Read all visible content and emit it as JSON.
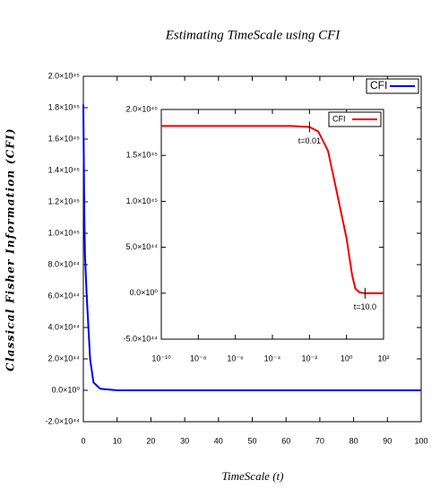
{
  "chart_data": [
    {
      "type": "line",
      "title": "Estimating TimeScale using CFI",
      "x_label": "TimeScale (t)",
      "y_label": "Classical Fisher Information (CFI)",
      "x": [
        0,
        0.1,
        0.3,
        0.5,
        1,
        2,
        3,
        5,
        10,
        20,
        30,
        40,
        50,
        60,
        70,
        80,
        90,
        100
      ],
      "series": [
        {
          "name": "CFI",
          "color": "#0000ee",
          "values": [
            1.82e+45,
            1.55e+45,
            1.1e+45,
            8.5e+44,
            6e+44,
            2e+44,
            5e+43,
            1e+43,
            0,
            0,
            0,
            0,
            0,
            0,
            0,
            0,
            0,
            0
          ]
        }
      ],
      "xlim": [
        0,
        100
      ],
      "xticks": [
        0,
        10,
        20,
        30,
        40,
        50,
        60,
        70,
        80,
        90,
        100
      ],
      "ylim": [
        -2e+44,
        2e+45
      ],
      "yticks": [
        {
          "value": -2e+44,
          "label": "-2.0×10⁴⁴"
        },
        {
          "value": 0,
          "label": "0.0×10⁰"
        },
        {
          "value": 2e+44,
          "label": "2.0×10⁴⁴"
        },
        {
          "value": 4e+44,
          "label": "4.0×10⁴⁴"
        },
        {
          "value": 6e+44,
          "label": "6.0×10⁴⁴"
        },
        {
          "value": 8e+44,
          "label": "8.0×10⁴⁴"
        },
        {
          "value": 1e+45,
          "label": "1.0×10⁴⁵"
        },
        {
          "value": 1.2e+45,
          "label": "1.2×10⁴⁵"
        },
        {
          "value": 1.4e+45,
          "label": "1.4×10⁴⁵"
        },
        {
          "value": 1.6e+45,
          "label": "1.6×10⁴⁵"
        },
        {
          "value": 1.8e+45,
          "label": "1.8×10⁴⁵"
        },
        {
          "value": 2e+45,
          "label": "2.0×10⁴⁵"
        }
      ],
      "legend": "top-right"
    },
    {
      "type": "line",
      "x": [
        1e-10,
        1e-08,
        1e-06,
        0.0001,
        0.001,
        0.01,
        0.03,
        0.1,
        0.3,
        1,
        2,
        3,
        5,
        10,
        30,
        100
      ],
      "series": [
        {
          "name": "CFI",
          "color": "#ee0000",
          "values": [
            1.82e+45,
            1.82e+45,
            1.82e+45,
            1.82e+45,
            1.82e+45,
            1.81e+45,
            1.76e+45,
            1.55e+45,
            1.1e+45,
            6e+44,
            2e+44,
            5e+43,
            1e+43,
            0,
            0,
            0
          ]
        }
      ],
      "xscale": "log",
      "xlim": [
        1e-10,
        100
      ],
      "xticks": [
        {
          "value": 1e-10,
          "label": "10⁻¹⁰"
        },
        {
          "value": 1e-08,
          "label": "10⁻⁸"
        },
        {
          "value": 1e-06,
          "label": "10⁻⁶"
        },
        {
          "value": 0.0001,
          "label": "10⁻⁴"
        },
        {
          "value": 0.01,
          "label": "10⁻²"
        },
        {
          "value": 1,
          "label": "10⁰"
        },
        {
          "value": 100,
          "label": "10²"
        }
      ],
      "ylim": [
        -5e+44,
        2e+45
      ],
      "yticks": [
        {
          "value": -5e+44,
          "label": "-5.0×10⁴⁴"
        },
        {
          "value": 0,
          "label": "0.0×10⁰"
        },
        {
          "value": 5e+44,
          "label": "5.0×10⁴⁴"
        },
        {
          "value": 1e+45,
          "label": "1.0×10⁴⁵"
        },
        {
          "value": 1.5e+45,
          "label": "1.5×10⁴⁵"
        },
        {
          "value": 2e+45,
          "label": "2.0×10⁴⁵"
        }
      ],
      "annotations": [
        {
          "text": "t=0.01",
          "x": 0.01,
          "y": 1.81e+45
        },
        {
          "text": "t=10.0",
          "x": 10,
          "y": 0
        }
      ],
      "legend": "top-right"
    }
  ]
}
